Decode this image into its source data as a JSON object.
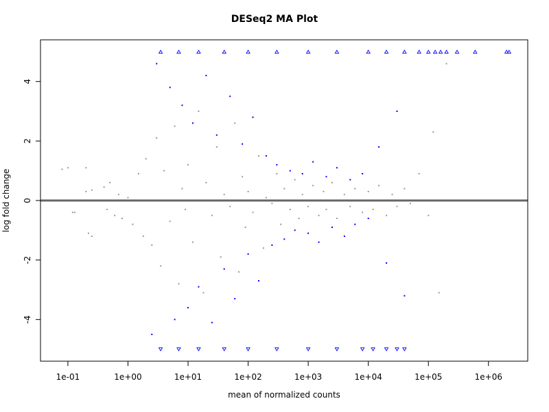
{
  "chart_data": {
    "type": "scatter",
    "title": "DESeq2 MA Plot",
    "xlabel": "mean of normalized counts",
    "ylabel": "log fold change",
    "x_scale": "log10",
    "xlim": [
      0.035,
      4500000
    ],
    "ylim": [
      -5.4,
      5.4
    ],
    "x_ticks": [
      {
        "value": 0.1,
        "label": "1e-01"
      },
      {
        "value": 1,
        "label": "1e+00"
      },
      {
        "value": 10,
        "label": "1e+01"
      },
      {
        "value": 100,
        "label": "1e+02"
      },
      {
        "value": 1000,
        "label": "1e+03"
      },
      {
        "value": 10000,
        "label": "1e+04"
      },
      {
        "value": 100000,
        "label": "1e+05"
      },
      {
        "value": 1000000,
        "label": "1e+06"
      }
    ],
    "y_ticks": [
      {
        "value": -4,
        "label": "-4"
      },
      {
        "value": -2,
        "label": "-2"
      },
      {
        "value": 0,
        "label": "0"
      },
      {
        "value": 2,
        "label": "2"
      },
      {
        "value": 4,
        "label": "4"
      }
    ],
    "reference_line": {
      "y": 0,
      "color": "#666666"
    },
    "clip_limits": [
      -5,
      5
    ],
    "grid": false,
    "legend": "none",
    "series": [
      {
        "color": "#999999",
        "marker": "point",
        "values": [
          [
            0.08,
            1.05
          ],
          [
            0.1,
            1.1
          ],
          [
            0.12,
            -0.4
          ],
          [
            0.13,
            -0.4
          ],
          [
            0.2,
            0.3
          ],
          [
            0.25,
            0.35
          ],
          [
            0.22,
            -1.1
          ],
          [
            0.25,
            -1.2
          ],
          [
            0.2,
            1.1
          ],
          [
            0.4,
            0.45
          ],
          [
            0.5,
            0.6
          ],
          [
            0.45,
            -0.3
          ],
          [
            0.6,
            -0.5
          ],
          [
            0.7,
            0.2
          ],
          [
            0.8,
            -0.6
          ],
          [
            1.0,
            0.1
          ],
          [
            1.2,
            -0.8
          ],
          [
            1.5,
            0.9
          ],
          [
            1.8,
            -1.2
          ],
          [
            2.0,
            1.4
          ],
          [
            2.5,
            -1.5
          ],
          [
            3.0,
            2.1
          ],
          [
            3.5,
            -2.2
          ],
          [
            4.0,
            1.0
          ],
          [
            5.0,
            -0.7
          ],
          [
            6.0,
            2.5
          ],
          [
            7.0,
            -2.8
          ],
          [
            8.0,
            0.4
          ],
          [
            9.0,
            -0.3
          ],
          [
            10,
            1.2
          ],
          [
            12,
            -1.4
          ],
          [
            15,
            3.0
          ],
          [
            18,
            -3.1
          ],
          [
            20,
            0.6
          ],
          [
            25,
            -0.5
          ],
          [
            30,
            1.8
          ],
          [
            35,
            -1.9
          ],
          [
            40,
            0.2
          ],
          [
            50,
            -0.2
          ],
          [
            60,
            2.6
          ],
          [
            70,
            -2.4
          ],
          [
            80,
            0.8
          ],
          [
            90,
            -0.9
          ],
          [
            100,
            0.3
          ],
          [
            120,
            -0.4
          ],
          [
            150,
            1.5
          ],
          [
            180,
            -1.6
          ],
          [
            200,
            0.1
          ],
          [
            250,
            -0.1
          ],
          [
            300,
            0.9
          ],
          [
            350,
            -0.8
          ],
          [
            400,
            0.4
          ],
          [
            500,
            -0.3
          ],
          [
            600,
            0.7
          ],
          [
            700,
            -0.6
          ],
          [
            800,
            0.2
          ],
          [
            1000,
            -0.2
          ],
          [
            1200,
            0.5
          ],
          [
            1500,
            -0.5
          ],
          [
            1800,
            0.3
          ],
          [
            2000,
            -0.3
          ],
          [
            2500,
            0.6
          ],
          [
            3000,
            -0.6
          ],
          [
            4000,
            0.2
          ],
          [
            5000,
            -0.2
          ],
          [
            6000,
            0.4
          ],
          [
            8000,
            -0.4
          ],
          [
            10000,
            0.3
          ],
          [
            12000,
            -0.3
          ],
          [
            15000,
            0.5
          ],
          [
            20000,
            -0.5
          ],
          [
            25000,
            0.2
          ],
          [
            30000,
            -0.2
          ],
          [
            40000,
            0.4
          ],
          [
            50000,
            -0.1
          ],
          [
            70000,
            0.9
          ],
          [
            100000,
            -0.5
          ],
          [
            120000,
            2.3
          ],
          [
            150000,
            -3.1
          ],
          [
            200000,
            4.6
          ]
        ]
      },
      {
        "color": "#0000ff",
        "marker": "point",
        "values": [
          [
            2.5,
            -4.5
          ],
          [
            3,
            4.6
          ],
          [
            5,
            3.8
          ],
          [
            6,
            -4.0
          ],
          [
            8,
            3.2
          ],
          [
            10,
            -3.6
          ],
          [
            12,
            2.6
          ],
          [
            15,
            -2.9
          ],
          [
            20,
            4.2
          ],
          [
            25,
            -4.1
          ],
          [
            30,
            2.2
          ],
          [
            40,
            -2.3
          ],
          [
            50,
            3.5
          ],
          [
            60,
            -3.3
          ],
          [
            80,
            1.9
          ],
          [
            100,
            -1.8
          ],
          [
            120,
            2.8
          ],
          [
            150,
            -2.7
          ],
          [
            200,
            1.5
          ],
          [
            250,
            -1.5
          ],
          [
            300,
            1.2
          ],
          [
            400,
            -1.3
          ],
          [
            500,
            1.0
          ],
          [
            600,
            -1.0
          ],
          [
            800,
            0.9
          ],
          [
            1000,
            -1.1
          ],
          [
            1200,
            1.3
          ],
          [
            1500,
            -1.4
          ],
          [
            2000,
            0.8
          ],
          [
            2500,
            -0.9
          ],
          [
            3000,
            1.1
          ],
          [
            4000,
            -1.2
          ],
          [
            5000,
            0.7
          ],
          [
            6000,
            -0.8
          ],
          [
            8000,
            0.9
          ],
          [
            10000,
            -0.6
          ],
          [
            15000,
            1.8
          ],
          [
            20000,
            -2.1
          ],
          [
            30000,
            3.0
          ],
          [
            40000,
            -3.2
          ]
        ]
      }
    ],
    "clipped_markers": {
      "color": "#0000ff",
      "upper": {
        "y": 5,
        "marker": "triangle-up",
        "x": [
          3.5,
          7,
          15,
          40,
          100,
          300,
          1000,
          3000,
          10000,
          20000,
          40000,
          70000,
          100000,
          130000,
          160000,
          200000,
          300000,
          600000,
          2000000,
          2200000
        ]
      },
      "lower": {
        "y": -5,
        "marker": "triangle-down",
        "x": [
          3.5,
          7,
          15,
          40,
          100,
          300,
          1000,
          3000,
          8000,
          12000,
          20000,
          30000,
          40000
        ]
      }
    }
  }
}
